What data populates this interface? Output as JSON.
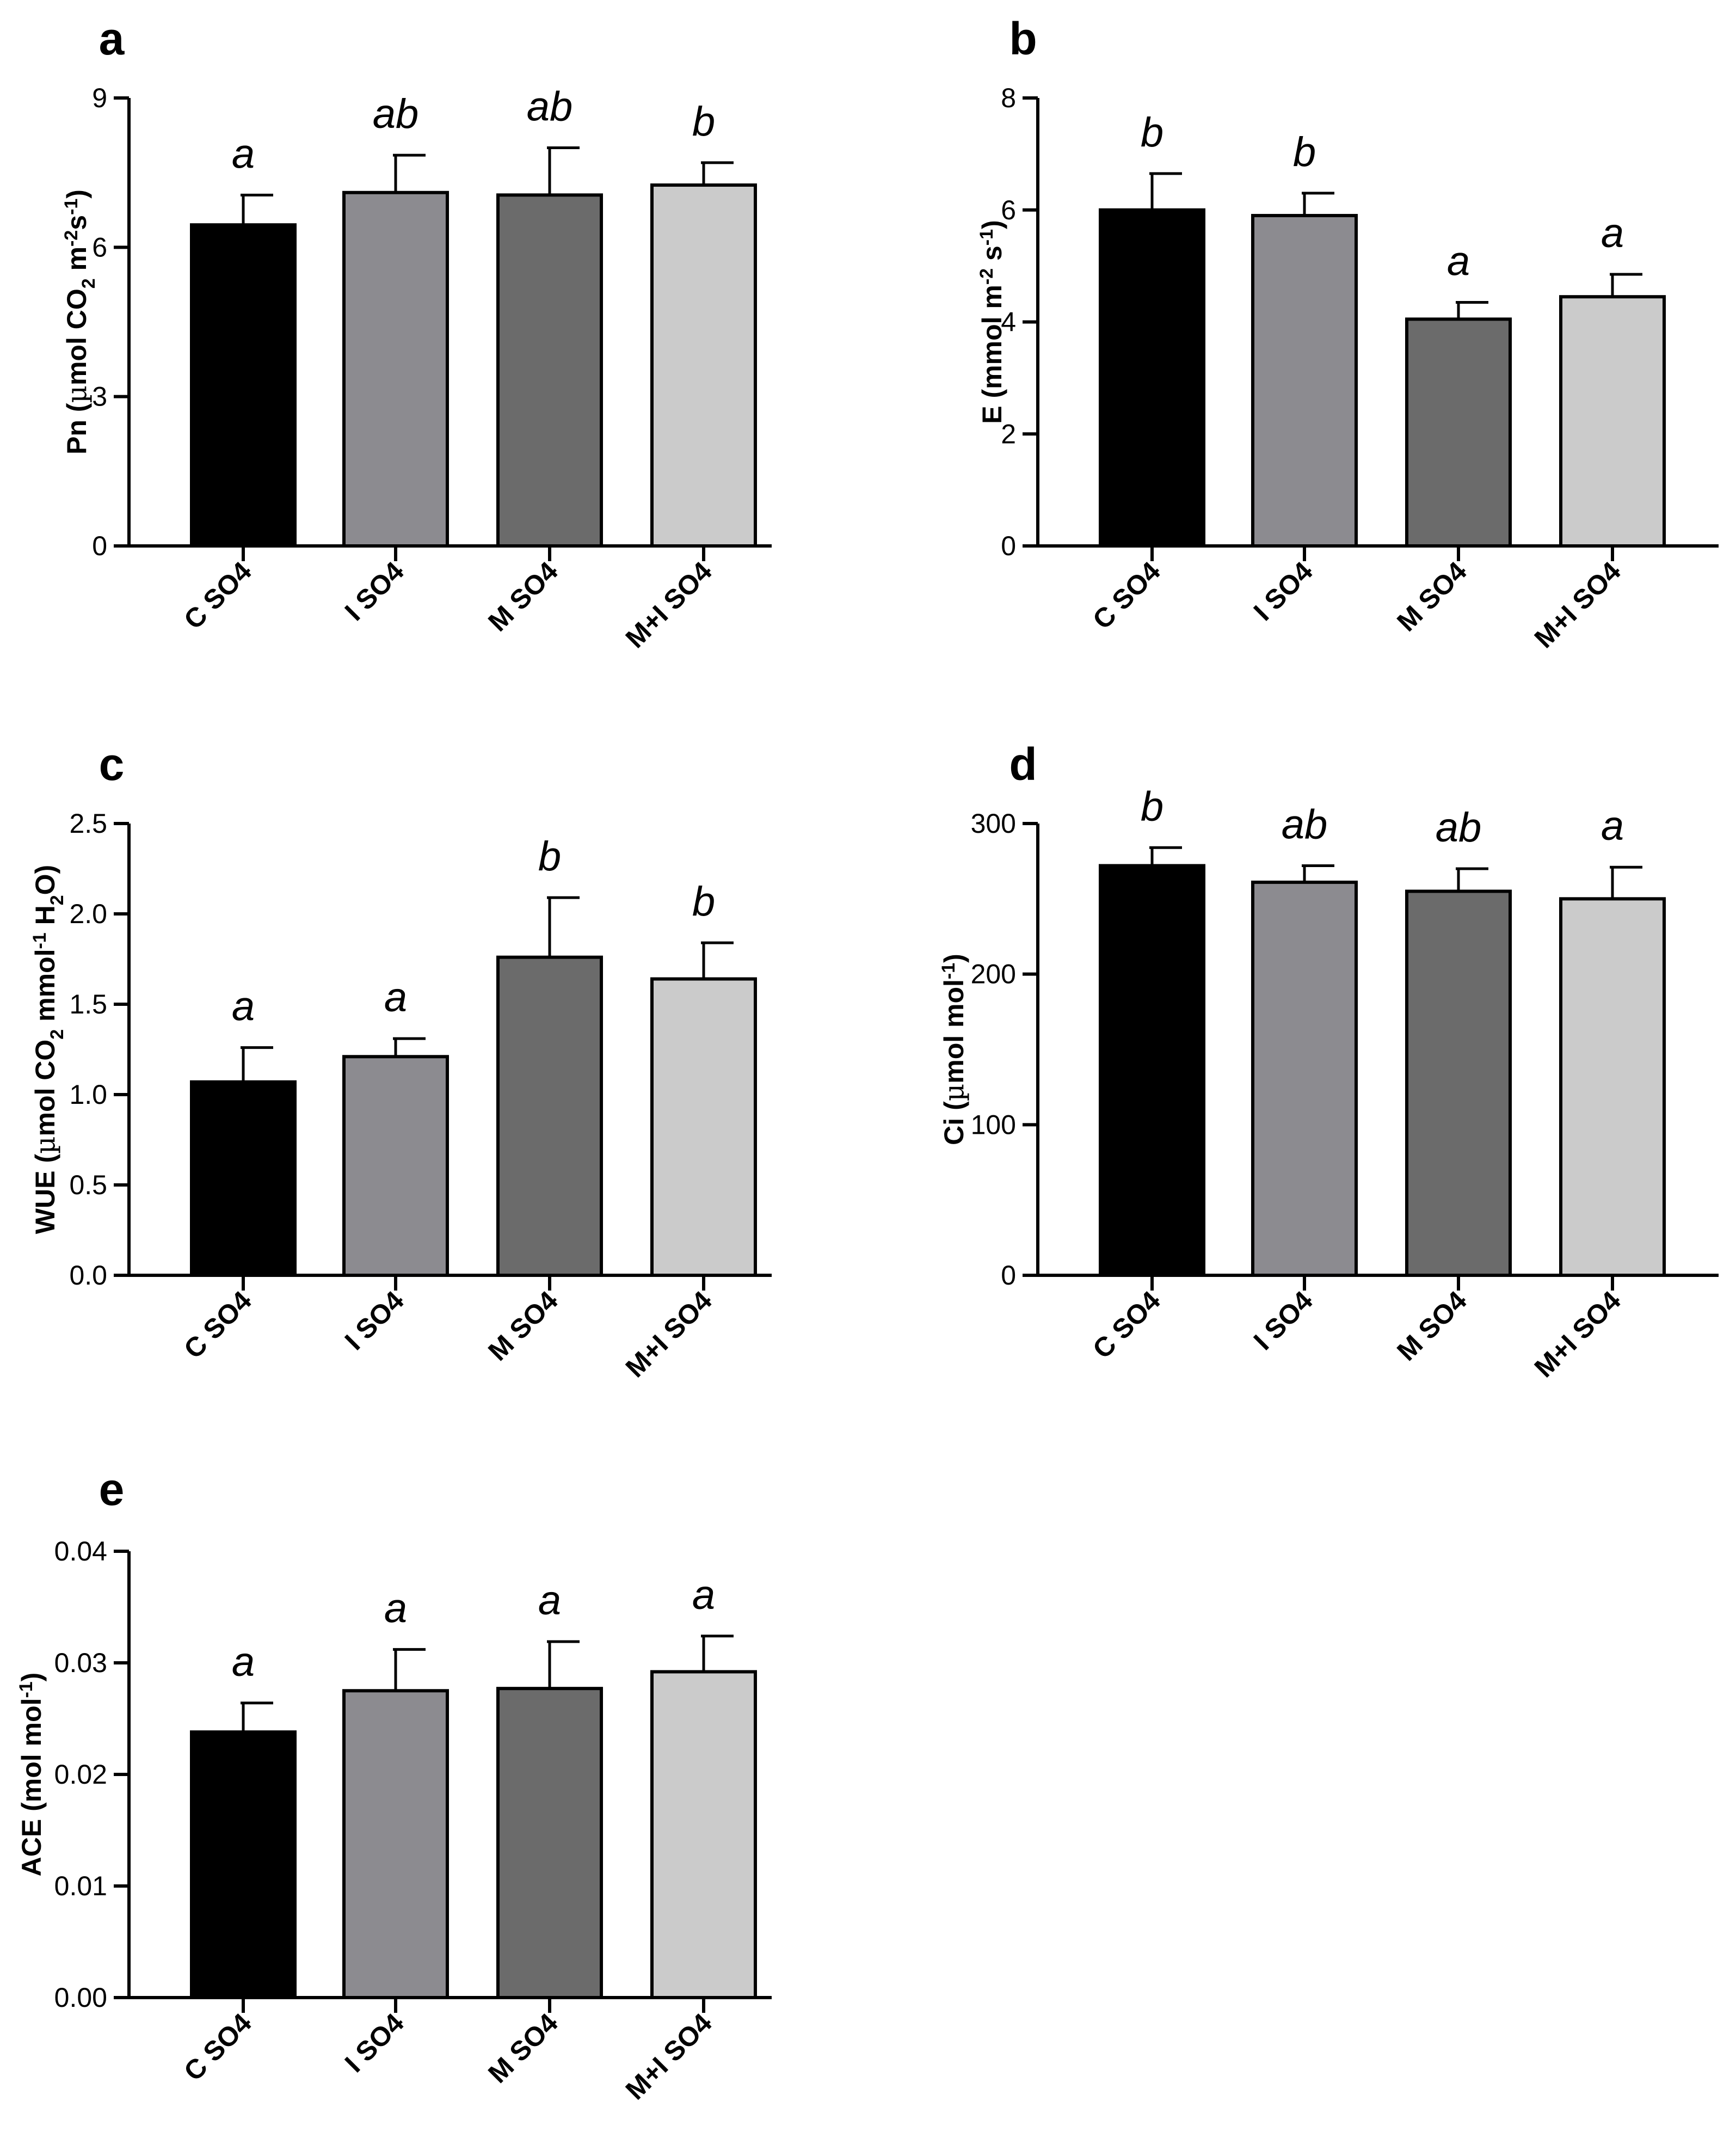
{
  "chart_data": [
    {
      "type": "bar",
      "panel": "a",
      "categories": [
        "C SO4",
        "I SO4",
        "M SO4",
        "M+I SO4"
      ],
      "values": [
        6.45,
        7.1,
        7.05,
        7.25
      ],
      "errors": [
        0.6,
        0.75,
        0.95,
        0.45
      ],
      "significance": [
        "a",
        "ab",
        "ab",
        "b"
      ],
      "ylabel": {
        "pre": "Pn (",
        "mu": "µ",
        "mid": "mol CO",
        "sub": "2",
        "mid2": " m",
        "sup1": "-2",
        "mid3": "s",
        "sup2": "-1",
        "post": ")"
      },
      "ylim": [
        0,
        9
      ],
      "yticks": [
        "0",
        "3",
        "6",
        "9"
      ],
      "colors": [
        "#000000",
        "#8c8b90",
        "#6b6b6b",
        "#cbcbcb"
      ]
    },
    {
      "type": "bar",
      "panel": "b",
      "categories": [
        "C SO4",
        "I SO4",
        "M SO4",
        "M+I SO4"
      ],
      "values": [
        6.0,
        5.9,
        4.05,
        4.45
      ],
      "errors": [
        0.65,
        0.4,
        0.3,
        0.4
      ],
      "significance": [
        "b",
        "b",
        "a",
        "a"
      ],
      "ylabel": {
        "pre": "E (mmol m",
        "sup1": "-2",
        "mid": " s",
        "sup2": "-1",
        "post": ")"
      },
      "ylim": [
        0,
        8
      ],
      "yticks": [
        "0",
        "2",
        "4",
        "6",
        "8"
      ],
      "colors": [
        "#000000",
        "#8c8b90",
        "#6b6b6b",
        "#cbcbcb"
      ]
    },
    {
      "type": "bar",
      "panel": "c",
      "categories": [
        "C SO4",
        "I SO4",
        "M SO4",
        "M+I SO4"
      ],
      "values": [
        1.07,
        1.21,
        1.76,
        1.64
      ],
      "errors": [
        0.19,
        0.1,
        0.33,
        0.2
      ],
      "significance": [
        "a",
        "a",
        "b",
        "b"
      ],
      "ylabel": {
        "pre": "WUE (",
        "mu": "µ",
        "mid": "mol CO",
        "sub": "2",
        "mid2": " mmol",
        "sup1": "-1",
        "mid3": " H",
        "sub2": "2",
        "post": "O)"
      },
      "ylim": [
        0,
        2.5
      ],
      "yticks": [
        "0.0",
        "0.5",
        "1.0",
        "1.5",
        "2.0",
        "2.5"
      ],
      "colors": [
        "#000000",
        "#8c8b90",
        "#6b6b6b",
        "#cbcbcb"
      ]
    },
    {
      "type": "bar",
      "panel": "d",
      "categories": [
        "C SO4",
        "I SO4",
        "M SO4",
        "M+I SO4"
      ],
      "values": [
        272,
        261,
        255,
        250
      ],
      "errors": [
        12,
        11,
        15,
        21
      ],
      "significance": [
        "b",
        "ab",
        "ab",
        "a"
      ],
      "ylabel": {
        "pre": "Ci (",
        "mu": "µ",
        "mid": "mol mol",
        "sup1": "-1",
        "post": ")"
      },
      "ylim": [
        0,
        300
      ],
      "yticks": [
        "0",
        "100",
        "200",
        "300"
      ],
      "colors": [
        "#000000",
        "#8c8b90",
        "#6b6b6b",
        "#cbcbcb"
      ]
    },
    {
      "type": "bar",
      "panel": "e",
      "categories": [
        "C SO4",
        "I SO4",
        "M SO4",
        "M+I SO4"
      ],
      "values": [
        0.0238,
        0.0275,
        0.0277,
        0.0292
      ],
      "errors": [
        0.0026,
        0.0037,
        0.0042,
        0.0032
      ],
      "significance": [
        "a",
        "a",
        "a",
        "a"
      ],
      "ylabel": {
        "pre": "ACE (mol mol",
        "sup1": "-1",
        "post": ")"
      },
      "ylim": [
        0,
        0.04
      ],
      "yticks": [
        "0.00",
        "0.01",
        "0.02",
        "0.03",
        "0.04"
      ],
      "colors": [
        "#000000",
        "#8c8b90",
        "#6b6b6b",
        "#cbcbcb"
      ]
    }
  ]
}
